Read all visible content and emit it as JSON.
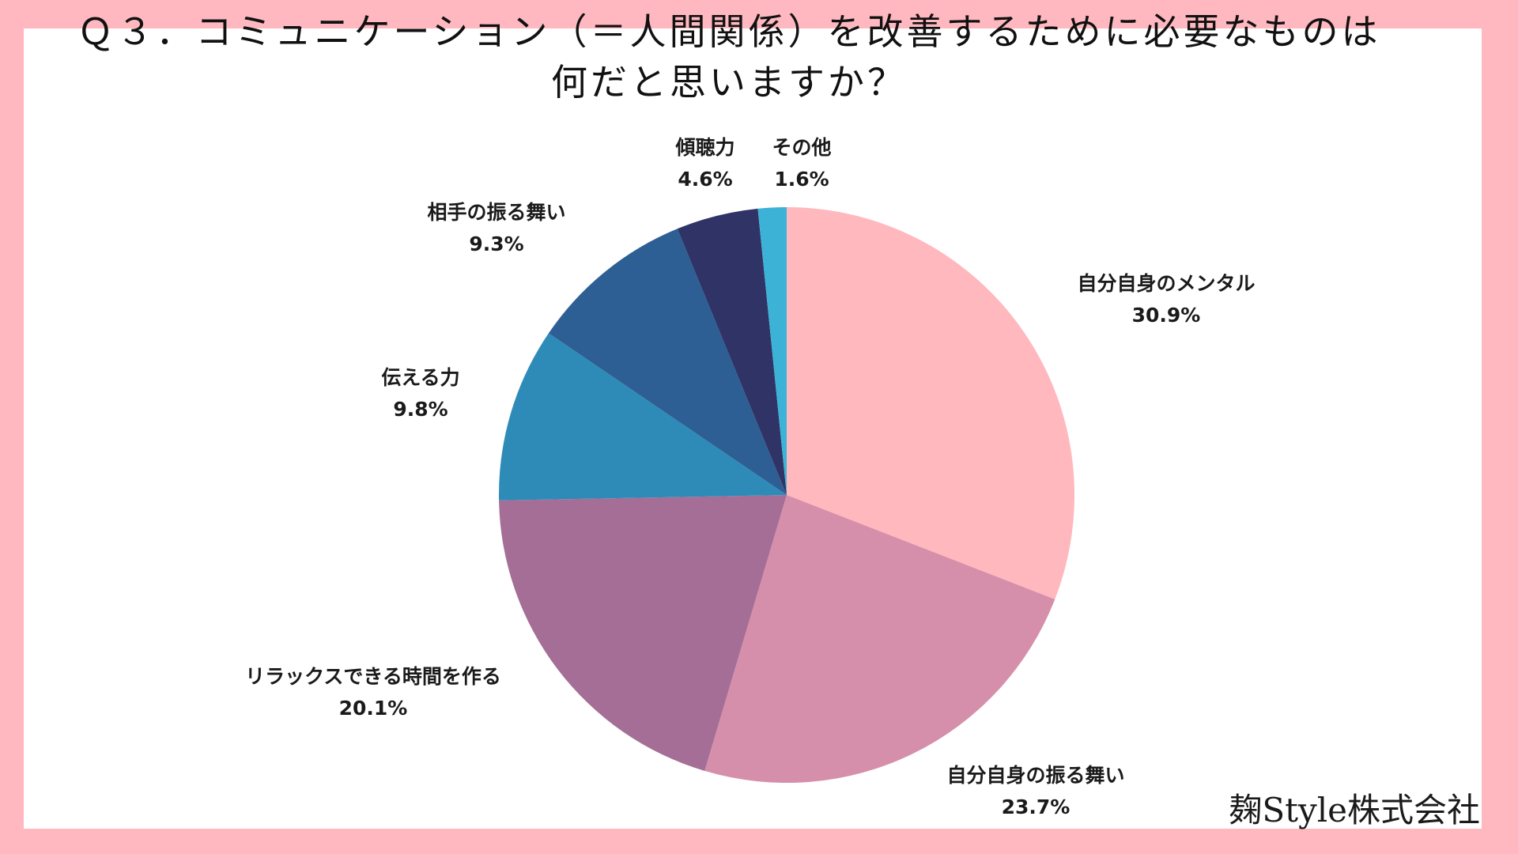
{
  "title_line1": "Ｑ３．コミュニケーション（＝人間関係）を改善するために必要なものは",
  "title_line2": "何だと思いますか？",
  "company": "麹Style株式会社",
  "chart_data": {
    "type": "pie",
    "title": "Ｑ３．コミュニケーション（＝人間関係）を改善するために必要なものは何だと思いますか？",
    "start": "12 o'clock, clockwise",
    "slices": [
      {
        "label": "自分自身のメンタル",
        "value": 30.9,
        "display": "30.9%",
        "color": "#ffb8be"
      },
      {
        "label": "自分自身の振る舞い",
        "value": 23.7,
        "display": "23.7%",
        "color": "#d68faa"
      },
      {
        "label": "リラックスできる時間を作る",
        "value": 20.1,
        "display": "20.1%",
        "color": "#a46e96"
      },
      {
        "label": "伝える力",
        "value": 9.8,
        "display": "9.8%",
        "color": "#2e8bb8"
      },
      {
        "label": "相手の振る舞い",
        "value": 9.3,
        "display": "9.3%",
        "color": "#2e5f94"
      },
      {
        "label": "傾聴力",
        "value": 4.6,
        "display": "4.6%",
        "color": "#2f3366"
      },
      {
        "label": "その他",
        "value": 1.6,
        "display": "1.6%",
        "color": "#3cb3d6"
      }
    ]
  }
}
